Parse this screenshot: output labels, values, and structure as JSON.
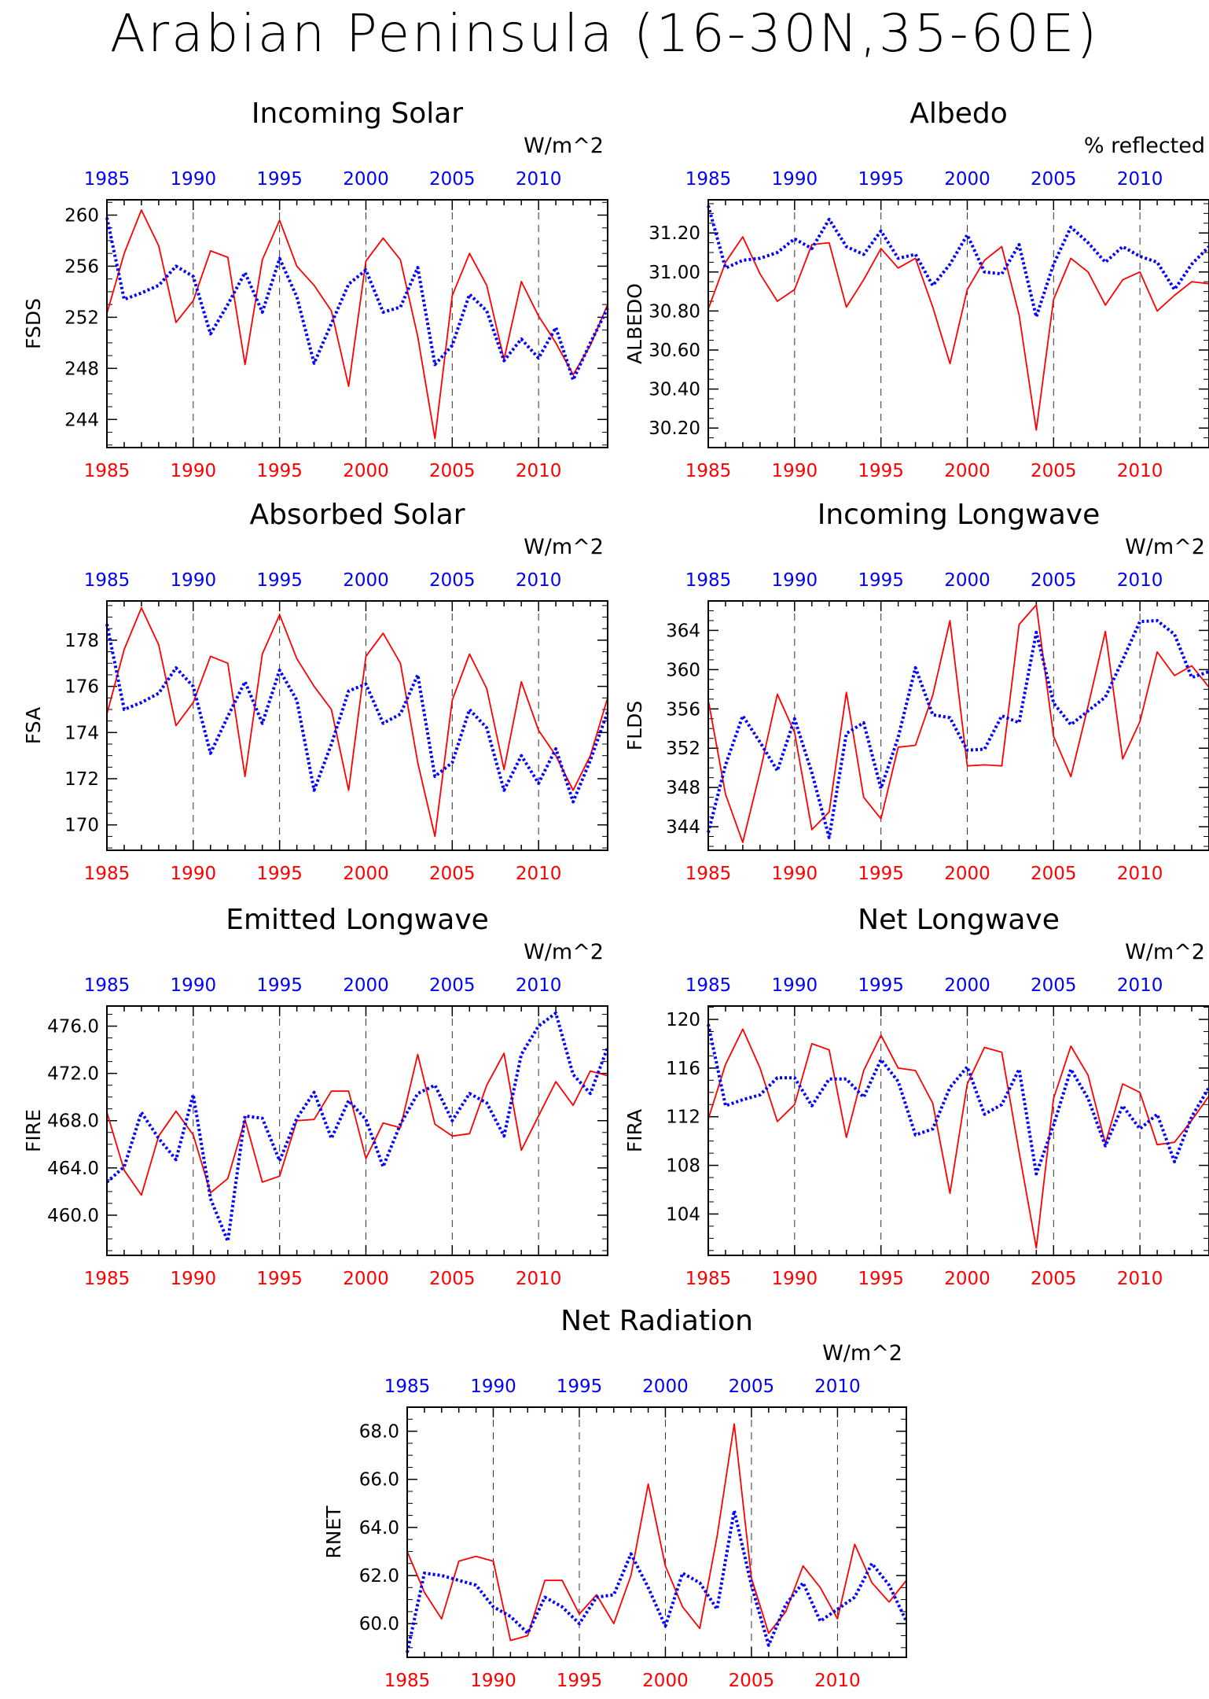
{
  "title": "Arabian Peninsula (16-30N,35-60E)",
  "colors": {
    "red_series": "#ff0000",
    "blue_series": "#0000ff",
    "axis": "#000000"
  },
  "years": [
    1985,
    1986,
    1987,
    1988,
    1989,
    1990,
    1991,
    1992,
    1993,
    1994,
    1995,
    1996,
    1997,
    1998,
    1999,
    2000,
    2001,
    2002,
    2003,
    2004,
    2005,
    2006,
    2007,
    2008,
    2009,
    2010,
    2011,
    2012,
    2013,
    2014
  ],
  "chart_data": [
    {
      "type": "line",
      "title": "Incoming Solar",
      "units": "W/m^2",
      "ylabel": "FSDS",
      "ylim": [
        241.8,
        261.2
      ],
      "yticks": [
        "244",
        "248",
        "252",
        "256",
        "260"
      ],
      "xlim": [
        1985,
        2014
      ],
      "xticks": [
        1985,
        1990,
        1995,
        2000,
        2005,
        2010
      ],
      "grid": "vertical dashed at 5-year ticks",
      "series": [
        {
          "color": "red",
          "style": "solid",
          "values": [
            252.3,
            257.0,
            260.4,
            257.6,
            251.6,
            253.3,
            257.2,
            256.7,
            248.3,
            256.5,
            259.6,
            256.0,
            254.5,
            252.5,
            246.6,
            256.4,
            258.2,
            256.5,
            250.5,
            242.5,
            253.7,
            257.0,
            254.5,
            248.7,
            254.8,
            252.1,
            250.0,
            247.5,
            249.8,
            253.0
          ]
        },
        {
          "color": "blue",
          "style": "dotted",
          "values": [
            259.8,
            253.4,
            253.9,
            254.5,
            256.0,
            255.2,
            250.7,
            253.0,
            255.5,
            252.4,
            256.6,
            253.6,
            248.4,
            251.5,
            254.6,
            255.7,
            252.4,
            252.8,
            255.9,
            248.3,
            249.8,
            253.8,
            252.5,
            248.6,
            250.3,
            248.8,
            251.2,
            247.1,
            250.0,
            252.7
          ]
        }
      ]
    },
    {
      "type": "line",
      "title": "Albedo",
      "units": "% reflected",
      "ylabel": "ALBEDO",
      "ylim": [
        30.1,
        31.37
      ],
      "yticks": [
        "30.20",
        "30.40",
        "30.60",
        "30.80",
        "31.00",
        "31.20"
      ],
      "xlim": [
        1985,
        2014
      ],
      "xticks": [
        1985,
        1990,
        1995,
        2000,
        2005,
        2010
      ],
      "grid": "vertical dashed at 5-year ticks",
      "series": [
        {
          "color": "red",
          "style": "solid",
          "values": [
            30.81,
            31.05,
            31.18,
            30.99,
            30.85,
            30.91,
            31.14,
            31.15,
            30.82,
            30.96,
            31.12,
            31.02,
            31.07,
            30.82,
            30.53,
            30.91,
            31.06,
            31.13,
            30.78,
            30.19,
            30.86,
            31.07,
            31.0,
            30.83,
            30.96,
            31.0,
            30.8,
            30.88,
            30.95,
            30.94
          ]
        },
        {
          "color": "blue",
          "style": "dotted",
          "values": [
            31.34,
            31.02,
            31.06,
            31.07,
            31.1,
            31.17,
            31.12,
            31.27,
            31.13,
            31.09,
            31.21,
            31.07,
            31.09,
            30.93,
            31.04,
            31.19,
            31.0,
            30.99,
            31.14,
            30.77,
            31.04,
            31.23,
            31.15,
            31.05,
            31.13,
            31.08,
            31.05,
            30.91,
            31.04,
            31.13
          ]
        }
      ]
    },
    {
      "type": "line",
      "title": "Absorbed Solar",
      "units": "W/m^2",
      "ylabel": "FSA",
      "ylim": [
        168.9,
        179.7
      ],
      "yticks": [
        "170",
        "172",
        "174",
        "176",
        "178"
      ],
      "xlim": [
        1985,
        2014
      ],
      "xticks": [
        1985,
        1990,
        1995,
        2000,
        2005,
        2010
      ],
      "grid": "vertical dashed at 5-year ticks",
      "series": [
        {
          "color": "red",
          "style": "solid",
          "values": [
            174.8,
            177.6,
            179.4,
            177.8,
            174.3,
            175.3,
            177.3,
            177.0,
            172.1,
            177.4,
            179.1,
            177.2,
            176.0,
            175.0,
            171.5,
            177.3,
            178.3,
            177.0,
            172.7,
            169.5,
            175.4,
            177.4,
            175.9,
            172.4,
            176.2,
            174.1,
            173.0,
            171.5,
            173.0,
            175.5
          ]
        },
        {
          "color": "blue",
          "style": "dotted",
          "values": [
            178.7,
            175.0,
            175.3,
            175.7,
            176.8,
            176.0,
            173.1,
            174.7,
            176.2,
            174.4,
            176.7,
            175.4,
            171.5,
            173.5,
            175.8,
            176.1,
            174.4,
            174.8,
            176.5,
            172.1,
            172.7,
            175.0,
            174.2,
            171.5,
            173.0,
            171.8,
            173.3,
            171.0,
            172.8,
            174.9
          ]
        }
      ]
    },
    {
      "type": "line",
      "title": "Incoming Longwave",
      "units": "W/m^2",
      "ylabel": "FLDS",
      "ylim": [
        341.6,
        367.0
      ],
      "yticks": [
        "344",
        "348",
        "352",
        "356",
        "360",
        "364"
      ],
      "xlim": [
        1985,
        2014
      ],
      "xticks": [
        1985,
        1990,
        1995,
        2000,
        2005,
        2010
      ],
      "grid": "vertical dashed at 5-year ticks",
      "series": [
        {
          "color": "red",
          "style": "solid",
          "values": [
            356.9,
            347.3,
            342.4,
            349.6,
            357.5,
            353.6,
            343.7,
            345.5,
            357.7,
            347.0,
            344.8,
            352.1,
            352.3,
            357.4,
            365.0,
            350.2,
            350.3,
            350.2,
            364.6,
            366.6,
            353.2,
            349.1,
            356.3,
            363.9,
            350.9,
            354.7,
            361.8,
            359.4,
            360.4,
            358.2
          ]
        },
        {
          "color": "blue",
          "style": "dotted",
          "values": [
            343.4,
            350.3,
            355.3,
            352.6,
            349.7,
            355.0,
            349.5,
            342.9,
            353.5,
            354.6,
            347.9,
            353.1,
            360.2,
            355.4,
            355.1,
            351.8,
            351.9,
            355.3,
            354.6,
            363.8,
            356.6,
            354.4,
            355.8,
            357.2,
            361.0,
            364.9,
            365.0,
            363.6,
            359.2,
            359.8
          ]
        }
      ]
    },
    {
      "type": "line",
      "title": "Emitted Longwave",
      "units": "W/m^2",
      "ylabel": "FIRE",
      "ylim": [
        456.6,
        477.7
      ],
      "yticks": [
        "460.0",
        "464.0",
        "468.0",
        "472.0",
        "476.0"
      ],
      "xlim": [
        1985,
        2014
      ],
      "xticks": [
        1985,
        1990,
        1995,
        2000,
        2005,
        2010
      ],
      "grid": "vertical dashed at 5-year ticks",
      "series": [
        {
          "color": "red",
          "style": "solid",
          "values": [
            468.7,
            463.8,
            461.7,
            466.7,
            468.8,
            466.8,
            461.9,
            463.1,
            468.1,
            462.8,
            463.3,
            468.0,
            468.1,
            470.5,
            470.5,
            464.8,
            467.8,
            467.4,
            473.6,
            467.7,
            466.7,
            466.9,
            471.0,
            473.7,
            465.5,
            468.4,
            471.3,
            469.3,
            472.2,
            471.8
          ]
        },
        {
          "color": "blue",
          "style": "dotted",
          "values": [
            462.8,
            464.1,
            468.7,
            466.5,
            464.7,
            470.2,
            461.4,
            457.8,
            468.4,
            468.2,
            464.6,
            468.2,
            470.4,
            466.5,
            469.7,
            468.1,
            464.1,
            467.7,
            470.3,
            471.0,
            468.0,
            470.3,
            469.5,
            466.7,
            473.6,
            476.0,
            477.1,
            471.9,
            470.3,
            474.2
          ]
        }
      ]
    },
    {
      "type": "line",
      "title": "Net Longwave",
      "units": "W/m^2",
      "ylabel": "FIRA",
      "ylim": [
        100.6,
        121.1
      ],
      "yticks": [
        "104",
        "108",
        "112",
        "116",
        "120"
      ],
      "xlim": [
        1985,
        2014
      ],
      "xticks": [
        1985,
        1990,
        1995,
        2000,
        2005,
        2010
      ],
      "grid": "vertical dashed at 5-year ticks",
      "series": [
        {
          "color": "red",
          "style": "solid",
          "values": [
            111.8,
            116.3,
            119.2,
            116.0,
            111.6,
            113.0,
            118.0,
            117.5,
            110.3,
            115.8,
            118.7,
            116.0,
            115.8,
            113.1,
            105.7,
            114.7,
            117.7,
            117.3,
            109.1,
            101.2,
            113.5,
            117.8,
            115.4,
            109.8,
            114.7,
            114.0,
            109.7,
            109.9,
            111.7,
            113.7
          ]
        },
        {
          "color": "blue",
          "style": "dotted",
          "values": [
            119.6,
            112.9,
            113.4,
            113.8,
            115.2,
            115.2,
            112.9,
            115.1,
            115.1,
            113.6,
            116.7,
            114.9,
            110.5,
            111.0,
            114.4,
            116.1,
            112.2,
            113.0,
            115.9,
            107.3,
            111.3,
            115.9,
            113.5,
            109.6,
            112.9,
            111.0,
            112.2,
            108.3,
            112.0,
            114.4
          ]
        }
      ]
    },
    {
      "type": "line",
      "title": "Net Radiation",
      "units": "W/m^2",
      "ylabel": "RNET",
      "ylim": [
        58.6,
        69.0
      ],
      "yticks": [
        "60.0",
        "62.0",
        "64.0",
        "66.0",
        "68.0"
      ],
      "xlim": [
        1985,
        2014
      ],
      "xticks": [
        1985,
        1990,
        1995,
        2000,
        2005,
        2010
      ],
      "grid": "vertical dashed at 5-year ticks",
      "series": [
        {
          "color": "red",
          "style": "solid",
          "values": [
            63.0,
            61.3,
            60.2,
            62.6,
            62.8,
            62.6,
            59.3,
            59.5,
            61.8,
            61.8,
            60.4,
            61.2,
            60.0,
            62.0,
            65.8,
            62.4,
            60.7,
            59.8,
            63.6,
            68.3,
            61.9,
            59.6,
            60.5,
            62.4,
            61.5,
            60.2,
            63.3,
            61.7,
            60.9,
            61.8
          ]
        },
        {
          "color": "blue",
          "style": "dotted",
          "values": [
            58.8,
            62.1,
            62.0,
            61.8,
            61.6,
            60.7,
            60.3,
            59.6,
            61.1,
            60.7,
            60.0,
            61.1,
            61.2,
            62.9,
            61.5,
            59.9,
            62.1,
            61.7,
            60.6,
            64.7,
            61.6,
            59.1,
            60.8,
            61.7,
            60.1,
            60.6,
            61.1,
            62.5,
            61.6,
            60.1
          ]
        }
      ]
    }
  ]
}
